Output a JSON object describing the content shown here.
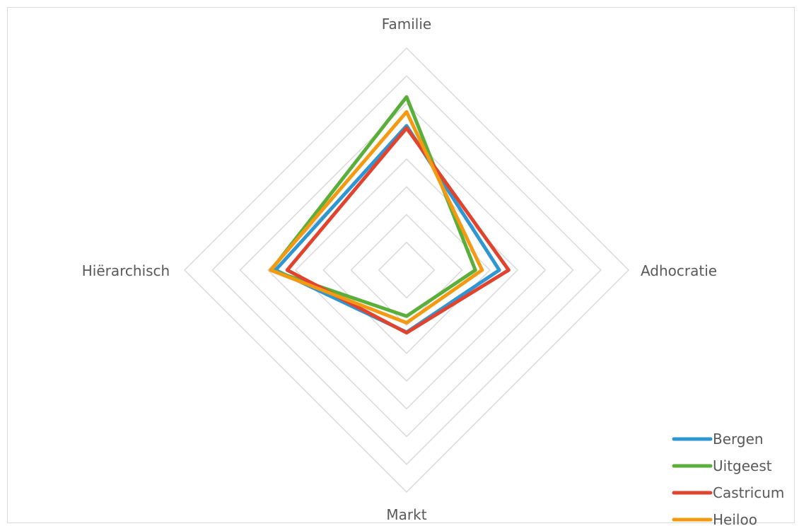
{
  "chart_data": {
    "type": "radar",
    "axes": [
      "Familie",
      "Adhocratie",
      "Markt",
      "Hiërarchisch"
    ],
    "rmax": 40,
    "rings": 8,
    "series": [
      {
        "name": "Bergen",
        "values": [
          26,
          16.7,
          11.2,
          23.6
        ],
        "color": "#2E96D2"
      },
      {
        "name": "Uitgeest",
        "values": [
          31.2,
          12.4,
          8.3,
          24.4
        ],
        "color": "#5AAE3A"
      },
      {
        "name": "Castricum",
        "values": [
          25.6,
          18.4,
          11.3,
          21.5
        ],
        "color": "#E2432E"
      },
      {
        "name": "Heiloo",
        "values": [
          28.5,
          13.6,
          9.5,
          24.5
        ],
        "color": "#F39A12"
      }
    ],
    "legend_position": "bottom-right",
    "grid": true
  }
}
